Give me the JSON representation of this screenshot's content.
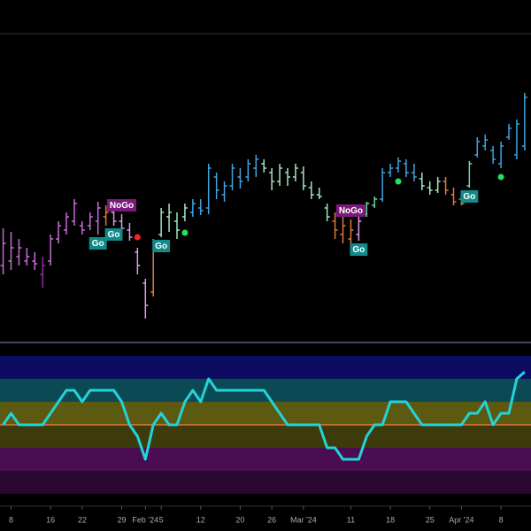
{
  "chart_data": [
    {
      "type": "ohlc",
      "xlim": [
        -0.4,
        66.8
      ],
      "ylim": [
        0,
        360
      ],
      "high": [
        132,
        128,
        120,
        110,
        105,
        100,
        125,
        140,
        150,
        165,
        140,
        150,
        162,
        158,
        160,
        148,
        138,
        110,
        75,
        120,
        155,
        160,
        150,
        160,
        165,
        165,
        205,
        195,
        185,
        205,
        200,
        210,
        215,
        210,
        200,
        205,
        200,
        205,
        202,
        185,
        178,
        160,
        150,
        145,
        142,
        145,
        162,
        168,
        200,
        205,
        212,
        210,
        205,
        195,
        185,
        190,
        190,
        178,
        172,
        208,
        235,
        238,
        225,
        230,
        250,
        255,
        285
      ],
      "low": [
        80,
        85,
        90,
        90,
        85,
        65,
        90,
        115,
        125,
        135,
        125,
        130,
        125,
        135,
        135,
        128,
        118,
        80,
        30,
        55,
        122,
        128,
        120,
        140,
        145,
        147,
        148,
        165,
        162,
        175,
        177,
        185,
        190,
        195,
        175,
        180,
        180,
        185,
        175,
        165,
        165,
        140,
        120,
        115,
        110,
        118,
        145,
        155,
        162,
        190,
        195,
        190,
        185,
        175,
        170,
        172,
        170,
        158,
        158,
        178,
        212,
        220,
        205,
        200,
        232,
        210,
        220
      ],
      "open": [
        90,
        95,
        100,
        95,
        95,
        80,
        95,
        120,
        130,
        140,
        135,
        135,
        140,
        145,
        150,
        140,
        130,
        105,
        70,
        60,
        125,
        145,
        140,
        145,
        150,
        155,
        155,
        190,
        170,
        180,
        190,
        190,
        200,
        205,
        195,
        185,
        195,
        190,
        195,
        178,
        170,
        155,
        140,
        125,
        120,
        125,
        148,
        158,
        165,
        195,
        200,
        205,
        195,
        188,
        178,
        175,
        185,
        170,
        165,
        180,
        215,
        225,
        220,
        205,
        235,
        215,
        225
      ],
      "close": [
        115,
        110,
        110,
        100,
        92,
        90,
        120,
        135,
        145,
        160,
        130,
        145,
        155,
        150,
        140,
        132,
        122,
        90,
        45,
        115,
        150,
        150,
        130,
        155,
        160,
        152,
        200,
        175,
        180,
        200,
        185,
        205,
        210,
        200,
        185,
        200,
        190,
        200,
        180,
        170,
        168,
        145,
        130,
        135,
        130,
        140,
        160,
        165,
        195,
        200,
        208,
        195,
        190,
        180,
        175,
        185,
        175,
        162,
        160,
        205,
        230,
        232,
        210,
        225,
        245,
        250,
        280
      ],
      "colors": [
        "#c86dd7",
        "#c86dd7",
        "#c86dd7",
        "#c86dd7",
        "#c86dd7",
        "#8e2e9e",
        "#c86dd7",
        "#c86dd7",
        "#c86dd7",
        "#c86dd7",
        "#c86dd7",
        "#c86dd7",
        "#c86dd7",
        "#e07b39",
        "#d9a0e0",
        "#d9a0e0",
        "#d9a0e0",
        "#d9a0e0",
        "#d9a0e0",
        "#e07b39",
        "#9fe8c0",
        "#9fe8c0",
        "#9fe8c0",
        "#9fe8c0",
        "#3fa3e0",
        "#3fa3e0",
        "#3fa3e0",
        "#3fa3e0",
        "#3fa3e0",
        "#3fa3e0",
        "#3fa3e0",
        "#3fa3e0",
        "#3fa3e0",
        "#9fe8c0",
        "#9fe8c0",
        "#9fe8c0",
        "#9fe8c0",
        "#9fe8c0",
        "#9fe8c0",
        "#9fe8c0",
        "#9fe8c0",
        "#9fe8c0",
        "#e07b39",
        "#e07b39",
        "#e07b39",
        "#d9a0e0",
        "#6fd79a",
        "#6fd79a",
        "#3fa3e0",
        "#3fa3e0",
        "#3fa3e0",
        "#3fa3e0",
        "#3fa3e0",
        "#9fe8c0",
        "#9fe8c0",
        "#9fe8c0",
        "#e07b39",
        "#e07b39",
        "#e07b39",
        "#6fd79a",
        "#3fa3e0",
        "#3fa3e0",
        "#3fa3e0",
        "#3fa3e0",
        "#3fa3e0",
        "#3fa3e0",
        "#3fa3e0"
      ],
      "signals": [
        {
          "label": "NoGo",
          "bar": 15,
          "color": "#7a1a7a"
        },
        {
          "label": "Go",
          "bar": 12,
          "color": "#138a8a"
        },
        {
          "label": "Go",
          "bar": 14,
          "color": "#138a8a"
        },
        {
          "label": "Go",
          "bar": 20,
          "color": "#138a8a"
        },
        {
          "label": "NoGo",
          "bar": 44,
          "color": "#7a1a7a"
        },
        {
          "label": "Go",
          "bar": 45,
          "color": "#138a8a"
        },
        {
          "label": "Go",
          "bar": 59,
          "color": "#138a8a"
        }
      ],
      "dots": [
        {
          "bar": 17,
          "value": 122,
          "color": "#ff2020"
        },
        {
          "bar": 23,
          "value": 127,
          "color": "#22e060"
        },
        {
          "bar": 50,
          "value": 185,
          "color": "#22e060"
        },
        {
          "bar": 63,
          "value": 190,
          "color": "#22e060"
        }
      ]
    },
    {
      "type": "line",
      "xlim": [
        -0.4,
        66.8
      ],
      "ylim": [
        -3,
        3
      ],
      "color": "#22d3d8",
      "zero_line_color": "#e07b39",
      "bands": [
        {
          "from": 2,
          "to": 3,
          "color": "#0b0b60"
        },
        {
          "from": 1,
          "to": 2,
          "color": "#0b4a55"
        },
        {
          "from": 0,
          "to": 1,
          "color": "#5c5a10"
        },
        {
          "from": -1,
          "to": 0,
          "color": "#3d3a0c"
        },
        {
          "from": -2,
          "to": -1,
          "color": "#4a0d52"
        },
        {
          "from": -3,
          "to": -2,
          "color": "#2a0830"
        }
      ],
      "values": [
        0,
        0.5,
        0,
        0,
        0,
        0,
        0.5,
        1,
        1.5,
        1.5,
        1,
        1.5,
        1.5,
        1.5,
        1.5,
        1,
        0,
        -0.5,
        -1.5,
        0,
        0.5,
        0,
        0,
        1,
        1.5,
        1,
        2,
        1.5,
        1.5,
        1.5,
        1.5,
        1.5,
        1.5,
        1.5,
        1,
        0.5,
        0,
        0,
        0,
        0,
        0,
        -1,
        -1,
        -1.5,
        -1.5,
        -1.5,
        -0.5,
        0,
        0,
        1,
        1,
        1,
        0.5,
        0,
        0,
        0,
        0,
        0,
        0,
        0.5,
        0.5,
        1,
        0,
        0.5,
        0.5,
        2,
        2.3
      ],
      "xticks": [
        {
          "value": 1,
          "label": "8"
        },
        {
          "value": 6,
          "label": "16"
        },
        {
          "value": 10,
          "label": "22"
        },
        {
          "value": 15,
          "label": "29"
        },
        {
          "value": 18,
          "label": "Feb '24"
        },
        {
          "value": 20,
          "label": "5"
        },
        {
          "value": 25,
          "label": "12"
        },
        {
          "value": 30,
          "label": "20"
        },
        {
          "value": 34,
          "label": "26"
        },
        {
          "value": 38,
          "label": "Mar '24"
        },
        {
          "value": 44,
          "label": "11"
        },
        {
          "value": 49,
          "label": "18"
        },
        {
          "value": 54,
          "label": "25"
        },
        {
          "value": 58,
          "label": "Apr '24"
        },
        {
          "value": 63,
          "label": "8"
        }
      ]
    }
  ]
}
